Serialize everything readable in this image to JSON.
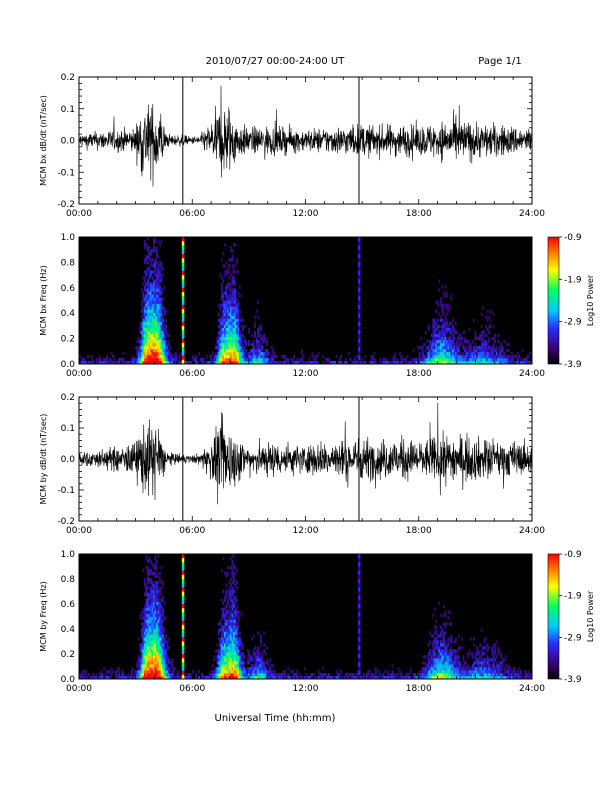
{
  "header": {
    "title": "2010/07/27  00:00-24:00 UT",
    "page": "Page 1/1"
  },
  "xlabel": "Universal Time (hh:mm)",
  "colors": {
    "trace": "#000000",
    "colorbar": [
      "#000000",
      "#3a0070",
      "#2a2aff",
      "#00c8ff",
      "#00ff60",
      "#ffff00",
      "#ff8000",
      "#ff0000"
    ]
  },
  "chart_data": [
    {
      "type": "line",
      "ylabel": "MCM bx dB/dt (nT/sec)",
      "xlim": [
        "00:00",
        "24:00"
      ],
      "xticks": [
        "00:00",
        "06:00",
        "12:00",
        "18:00",
        "24:00"
      ],
      "ylim": [
        -0.2,
        0.2
      ],
      "yticks": [
        "-0.2",
        "-0.1",
        "0.0",
        "0.1",
        "0.2"
      ],
      "grid": false,
      "series": [
        {
          "x_hours": [
            0,
            1,
            2,
            3,
            3.3,
            3.8,
            4.3,
            4.6,
            5.0,
            5.5,
            6.0,
            6.5,
            7.0,
            7.5,
            8.0,
            8.4,
            9.0,
            10.0,
            11.0,
            12.0,
            13.0,
            14.0,
            15.0,
            16.0,
            17.0,
            18.0,
            19.0,
            20.0,
            21.0,
            22.0,
            23.0,
            24.0
          ],
          "amplitude": [
            0.04,
            0.05,
            0.06,
            0.07,
            0.2,
            0.2,
            0.2,
            0.04,
            0.03,
            0.03,
            0.02,
            0.04,
            0.1,
            0.2,
            0.2,
            0.1,
            0.07,
            0.08,
            0.07,
            0.06,
            0.07,
            0.08,
            0.09,
            0.08,
            0.09,
            0.08,
            0.1,
            0.12,
            0.1,
            0.09,
            0.08,
            0.07
          ]
        }
      ],
      "events": [
        "05:30",
        "14:50"
      ]
    },
    {
      "type": "heatmap",
      "ylabel": "MCM bx Freq (Hz)",
      "xlim": [
        "00:00",
        "24:00"
      ],
      "xticks": [
        "00:00",
        "06:00",
        "12:00",
        "18:00",
        "24:00"
      ],
      "ylim": [
        0.0,
        1.0
      ],
      "yticks": [
        "0.0",
        "0.2",
        "0.4",
        "0.6",
        "0.8",
        "1.0"
      ],
      "colorbar": {
        "label": "Log10 Power",
        "range": [
          -3.9,
          -0.9
        ],
        "ticks": [
          "-0.9",
          "-1.9",
          "-2.9",
          "-3.9"
        ]
      }
    },
    {
      "type": "line",
      "ylabel": "MCM by dB/dt (nT/sec)",
      "xlim": [
        "00:00",
        "24:00"
      ],
      "xticks": [
        "00:00",
        "06:00",
        "12:00",
        "18:00",
        "24:00"
      ],
      "ylim": [
        -0.2,
        0.2
      ],
      "yticks": [
        "-0.2",
        "-0.1",
        "0.0",
        "0.1",
        "0.2"
      ],
      "grid": false,
      "series": [
        {
          "x_hours": [
            0,
            1,
            2,
            3,
            3.3,
            3.8,
            4.3,
            4.6,
            5.0,
            5.5,
            6.0,
            6.5,
            7.0,
            7.5,
            8.0,
            8.4,
            9.0,
            10.0,
            11.0,
            12.0,
            13.0,
            14.0,
            15.0,
            16.0,
            17.0,
            18.0,
            19.0,
            20.0,
            21.0,
            22.0,
            23.0,
            24.0
          ],
          "amplitude": [
            0.04,
            0.05,
            0.07,
            0.09,
            0.2,
            0.2,
            0.2,
            0.05,
            0.03,
            0.03,
            0.02,
            0.04,
            0.12,
            0.2,
            0.2,
            0.12,
            0.08,
            0.1,
            0.09,
            0.08,
            0.1,
            0.11,
            0.12,
            0.11,
            0.12,
            0.1,
            0.13,
            0.14,
            0.12,
            0.11,
            0.1,
            0.08
          ]
        }
      ],
      "events": [
        "05:30",
        "14:50"
      ]
    },
    {
      "type": "heatmap",
      "ylabel": "MCM by Freq (Hz)",
      "xlim": [
        "00:00",
        "24:00"
      ],
      "xticks": [
        "00:00",
        "06:00",
        "12:00",
        "18:00",
        "24:00"
      ],
      "ylim": [
        0.0,
        1.0
      ],
      "yticks": [
        "0.0",
        "0.2",
        "0.4",
        "0.6",
        "0.8",
        "1.0"
      ],
      "colorbar": {
        "label": "Log10 Power",
        "range": [
          -3.9,
          -0.9
        ],
        "ticks": [
          "-0.9",
          "-1.9",
          "-2.9",
          "-3.9"
        ]
      }
    }
  ]
}
